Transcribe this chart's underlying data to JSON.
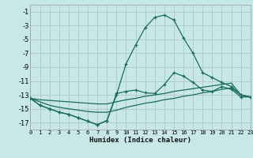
{
  "xlabel": "Humidex (Indice chaleur)",
  "background_color": "#c8e8e8",
  "grid_color": "#b0cccc",
  "line_color": "#1a6b5a",
  "xlim": [
    0,
    23
  ],
  "ylim": [
    -18,
    0
  ],
  "xticks": [
    0,
    1,
    2,
    3,
    4,
    5,
    6,
    7,
    8,
    9,
    10,
    11,
    12,
    13,
    14,
    15,
    16,
    17,
    18,
    19,
    20,
    21,
    22,
    23
  ],
  "yticks": [
    -1,
    -3,
    -5,
    -7,
    -9,
    -11,
    -13,
    -15,
    -17
  ],
  "curve1_x": [
    0,
    1,
    2,
    3,
    4,
    5,
    6,
    7,
    8,
    9,
    10,
    11,
    12,
    13,
    14,
    15,
    16,
    17,
    18,
    19,
    20,
    21,
    22,
    23
  ],
  "curve1_y": [
    -13.5,
    -14.5,
    -15.0,
    -15.5,
    -15.8,
    -16.3,
    -16.8,
    -17.3,
    -16.7,
    -13.0,
    -8.5,
    -5.8,
    -3.3,
    -1.8,
    -1.5,
    -2.2,
    -4.8,
    -7.0,
    -9.8,
    -10.5,
    -11.2,
    -11.8,
    -13.0,
    -13.3
  ],
  "curve2_x": [
    0,
    1,
    2,
    3,
    4,
    5,
    6,
    7,
    8,
    9,
    10,
    11,
    12,
    13,
    14,
    15,
    16,
    17,
    18,
    19,
    20,
    21,
    22,
    23
  ],
  "curve2_y": [
    -13.5,
    -14.5,
    -15.0,
    -15.5,
    -15.8,
    -16.3,
    -16.8,
    -17.3,
    -16.7,
    -12.8,
    -12.5,
    -12.3,
    -12.7,
    -12.8,
    -11.5,
    -9.8,
    -10.3,
    -11.2,
    -12.3,
    -12.5,
    -11.8,
    -12.2,
    -13.3,
    -13.3
  ],
  "line1_x": [
    0,
    1,
    2,
    3,
    4,
    5,
    6,
    7,
    8,
    9,
    10,
    11,
    12,
    13,
    14,
    15,
    16,
    17,
    18,
    19,
    20,
    21,
    22,
    23
  ],
  "line1_y": [
    -13.5,
    -13.7,
    -13.8,
    -13.9,
    -14.0,
    -14.1,
    -14.2,
    -14.3,
    -14.3,
    -14.0,
    -13.7,
    -13.5,
    -13.2,
    -13.0,
    -12.8,
    -12.5,
    -12.3,
    -12.1,
    -11.9,
    -11.7,
    -11.5,
    -11.3,
    -13.0,
    -13.3
  ],
  "line2_x": [
    0,
    1,
    2,
    3,
    4,
    5,
    6,
    7,
    8,
    9,
    10,
    11,
    12,
    13,
    14,
    15,
    16,
    17,
    18,
    19,
    20,
    21,
    22,
    23
  ],
  "line2_y": [
    -13.5,
    -14.0,
    -14.5,
    -14.8,
    -15.0,
    -15.2,
    -15.4,
    -15.5,
    -15.5,
    -15.2,
    -14.8,
    -14.5,
    -14.2,
    -14.0,
    -13.7,
    -13.5,
    -13.2,
    -13.0,
    -12.7,
    -12.5,
    -12.2,
    -12.0,
    -13.0,
    -13.3
  ]
}
